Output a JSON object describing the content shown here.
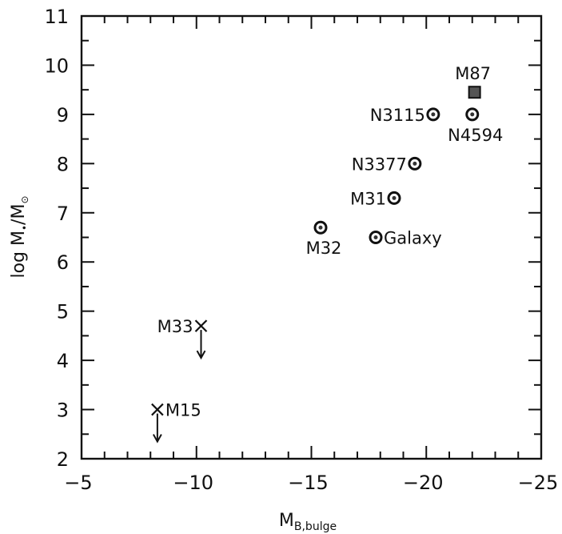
{
  "chart_data": {
    "type": "scatter",
    "title": "",
    "xlabel": "M",
    "xlabel_sub": "B,bulge",
    "ylabel": "log M",
    "ylabel_sub": "•",
    "ylabel_tail": "/M",
    "ylabel_sun": "⊙",
    "xlim": [
      -5,
      -25
    ],
    "ylim": [
      2,
      11
    ],
    "xticks": [
      -5,
      -10,
      -15,
      -20,
      -25
    ],
    "yticks": [
      2,
      3,
      4,
      5,
      6,
      7,
      8,
      9,
      10,
      11
    ],
    "xtick_labels": [
      "−5",
      "−10",
      "−15",
      "−20",
      "−25"
    ],
    "ytick_labels": [
      "2",
      "3",
      "4",
      "5",
      "6",
      "7",
      "8",
      "9",
      "10",
      "11"
    ],
    "grid": false,
    "points": [
      {
        "label": "M87",
        "x": -22.1,
        "y": 9.45,
        "marker": "square",
        "upper_limit": false,
        "label_pos": "above"
      },
      {
        "label": "N3115",
        "x": -20.3,
        "y": 9.0,
        "marker": "circle",
        "upper_limit": false,
        "label_pos": "left"
      },
      {
        "label": "N4594",
        "x": -22.0,
        "y": 9.0,
        "marker": "circle",
        "upper_limit": false,
        "label_pos": "below"
      },
      {
        "label": "N3377",
        "x": -19.5,
        "y": 8.0,
        "marker": "circle",
        "upper_limit": false,
        "label_pos": "left"
      },
      {
        "label": "M31",
        "x": -18.6,
        "y": 7.3,
        "marker": "circle",
        "upper_limit": false,
        "label_pos": "left"
      },
      {
        "label": "M32",
        "x": -15.4,
        "y": 6.7,
        "marker": "circle",
        "upper_limit": false,
        "label_pos": "below"
      },
      {
        "label": "Galaxy",
        "x": -17.8,
        "y": 6.5,
        "marker": "circle",
        "upper_limit": false,
        "label_pos": "right"
      },
      {
        "label": "M33",
        "x": -10.2,
        "y": 4.7,
        "marker": "cross",
        "upper_limit": true,
        "label_pos": "left"
      },
      {
        "label": "M15",
        "x": -8.3,
        "y": 3.0,
        "marker": "cross",
        "upper_limit": true,
        "label_pos": "right"
      }
    ]
  }
}
